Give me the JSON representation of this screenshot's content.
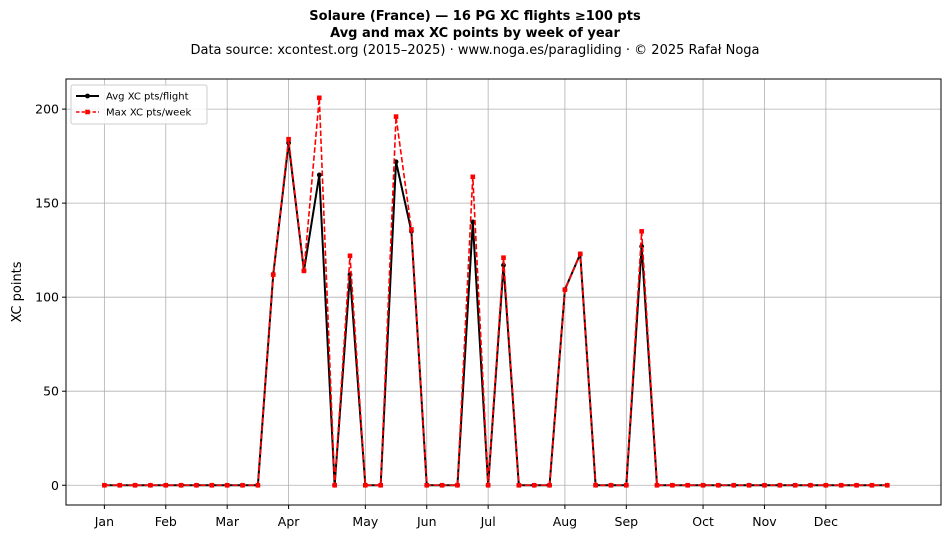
{
  "chart_data": {
    "type": "line",
    "title": "Solaure (France)  —  16 PG XC flights ≥100 pts",
    "title2": "Avg and max XC points by week of year",
    "subtitle": "Data source: xcontest.org (2015–2025)  ·  www.noga.es/paragliding  ·  © 2025 Rafał Noga",
    "xlabel": "",
    "ylabel": "XC points",
    "x_unit": "week of year",
    "xlim": [
      -2.5,
      54.5
    ],
    "ylim": [
      -10.5,
      216
    ],
    "yticks": [
      0,
      50,
      100,
      150,
      200
    ],
    "month_ticks": [
      {
        "label": "Jan",
        "week": 0
      },
      {
        "label": "Feb",
        "week": 4
      },
      {
        "label": "Mar",
        "week": 8
      },
      {
        "label": "Apr",
        "week": 12
      },
      {
        "label": "May",
        "week": 17
      },
      {
        "label": "Jun",
        "week": 21
      },
      {
        "label": "Jul",
        "week": 25
      },
      {
        "label": "Aug",
        "week": 30
      },
      {
        "label": "Sep",
        "week": 34
      },
      {
        "label": "Oct",
        "week": 39
      },
      {
        "label": "Nov",
        "week": 43
      },
      {
        "label": "Dec",
        "week": 47
      }
    ],
    "grid": true,
    "legend_position": "top-left",
    "x": [
      0,
      1,
      2,
      3,
      4,
      5,
      6,
      7,
      8,
      9,
      10,
      11,
      12,
      13,
      14,
      15,
      16,
      17,
      18,
      19,
      20,
      21,
      22,
      23,
      24,
      25,
      26,
      27,
      28,
      29,
      30,
      31,
      32,
      33,
      34,
      35,
      36,
      37,
      38,
      39,
      40,
      41,
      42,
      43,
      44,
      45,
      46,
      47,
      48,
      49,
      50,
      51
    ],
    "series": [
      {
        "name": "Avg XC pts/flight",
        "color": "#000000",
        "style": "solid",
        "marker": "circle",
        "values": [
          0,
          0,
          0,
          0,
          0,
          0,
          0,
          0,
          0,
          0,
          0,
          112,
          182,
          114,
          165,
          0,
          112,
          0,
          0,
          172,
          135,
          0,
          0,
          0,
          140,
          0,
          117,
          0,
          0,
          0,
          104,
          123,
          0,
          0,
          0,
          127,
          0,
          0,
          0,
          0,
          0,
          0,
          0,
          0,
          0,
          0,
          0,
          0,
          0,
          0,
          0,
          0
        ]
      },
      {
        "name": "Max XC pts/week",
        "color": "#ff0000",
        "style": "dashed",
        "marker": "square",
        "values": [
          0,
          0,
          0,
          0,
          0,
          0,
          0,
          0,
          0,
          0,
          0,
          112,
          184,
          114,
          206,
          0,
          122,
          0,
          0,
          196,
          136,
          0,
          0,
          0,
          164,
          0,
          121,
          0,
          0,
          0,
          104,
          123,
          0,
          0,
          0,
          135,
          0,
          0,
          0,
          0,
          0,
          0,
          0,
          0,
          0,
          0,
          0,
          0,
          0,
          0,
          0,
          0
        ]
      }
    ]
  }
}
